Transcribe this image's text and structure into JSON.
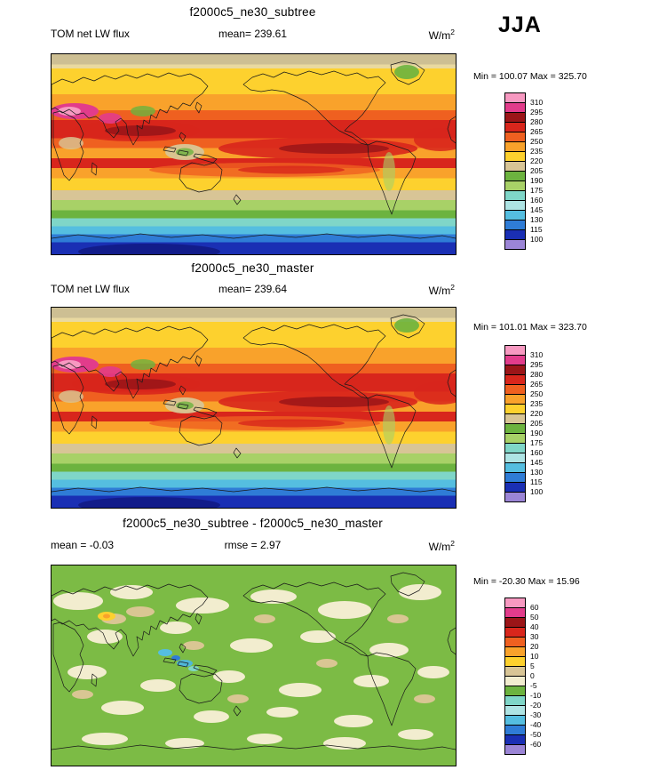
{
  "season_label": "JJA",
  "panels": [
    {
      "title": "f2000c5_ne30_subtree",
      "left_label": "TOM net LW flux",
      "center_label": "mean= 239.61",
      "units_base": "W/m",
      "units_exp": "2",
      "minmax": "Min = 100.07 Max = 325.70",
      "colorbar": {
        "labels": [
          "310",
          "295",
          "280",
          "265",
          "250",
          "235",
          "220",
          "205",
          "190",
          "175",
          "160",
          "145",
          "130",
          "115",
          "100"
        ],
        "colors": [
          "#F799C1",
          "#E23C8B",
          "#9B1518",
          "#D8261C",
          "#EF6020",
          "#F9A22B",
          "#FDD12E",
          "#D8C596",
          "#6CB33F",
          "#A8D167",
          "#7FD6C8",
          "#AEE4E4",
          "#55BEE0",
          "#2F7CD6",
          "#1A2FB4",
          "#9B85D6"
        ]
      }
    },
    {
      "title": "f2000c5_ne30_master",
      "left_label": "TOM net LW flux",
      "center_label": "mean= 239.64",
      "units_base": "W/m",
      "units_exp": "2",
      "minmax": "Min = 101.01 Max = 323.70",
      "colorbar": {
        "labels": [
          "310",
          "295",
          "280",
          "265",
          "250",
          "235",
          "220",
          "205",
          "190",
          "175",
          "160",
          "145",
          "130",
          "115",
          "100"
        ],
        "colors": [
          "#F799C1",
          "#E23C8B",
          "#9B1518",
          "#D8261C",
          "#EF6020",
          "#F9A22B",
          "#FDD12E",
          "#D8C596",
          "#6CB33F",
          "#A8D167",
          "#7FD6C8",
          "#AEE4E4",
          "#55BEE0",
          "#2F7CD6",
          "#1A2FB4",
          "#9B85D6"
        ]
      }
    },
    {
      "title": "f2000c5_ne30_subtree - f2000c5_ne30_master",
      "left_label": "mean = -0.03",
      "center_label": "rmse =  2.97",
      "units_base": "W/m",
      "units_exp": "2",
      "minmax": "Min = -20.30 Max =  15.96",
      "colorbar": {
        "labels": [
          "60",
          "50",
          "40",
          "30",
          "20",
          "10",
          "5",
          "0",
          "-5",
          "-10",
          "-20",
          "-30",
          "-40",
          "-50",
          "-60"
        ],
        "colors": [
          "#F799C1",
          "#E23C8B",
          "#9B1518",
          "#D8261C",
          "#EF6020",
          "#F9A22B",
          "#FDD12E",
          "#D8C596",
          "#F2EDCF",
          "#6CB33F",
          "#7FD6C8",
          "#AEE4E4",
          "#55BEE0",
          "#2F7CD6",
          "#1A2FB4",
          "#9B85D6"
        ]
      }
    }
  ],
  "chart_data": [
    {
      "type": "heatmap",
      "subtype": "global_contour_map",
      "projection": "equirectangular",
      "title": "f2000c5_ne30_subtree",
      "variable": "TOM net LW flux",
      "season": "JJA",
      "units": "W/m^2",
      "mean": 239.61,
      "min": 100.07,
      "max": 325.7,
      "contour_levels": [
        100,
        115,
        130,
        145,
        160,
        175,
        190,
        205,
        220,
        235,
        250,
        265,
        280,
        295,
        310
      ],
      "palette_low_to_high": [
        "#9B85D6",
        "#1A2FB4",
        "#2F7CD6",
        "#55BEE0",
        "#AEE4E4",
        "#7FD6C8",
        "#A8D167",
        "#6CB33F",
        "#D8C596",
        "#FDD12E",
        "#F9A22B",
        "#EF6020",
        "#D8261C",
        "#9B1518",
        "#E23C8B",
        "#F799C1"
      ]
    },
    {
      "type": "heatmap",
      "subtype": "global_contour_map",
      "projection": "equirectangular",
      "title": "f2000c5_ne30_master",
      "variable": "TOM net LW flux",
      "season": "JJA",
      "units": "W/m^2",
      "mean": 239.64,
      "min": 101.01,
      "max": 323.7,
      "contour_levels": [
        100,
        115,
        130,
        145,
        160,
        175,
        190,
        205,
        220,
        235,
        250,
        265,
        280,
        295,
        310
      ],
      "palette_low_to_high": [
        "#9B85D6",
        "#1A2FB4",
        "#2F7CD6",
        "#55BEE0",
        "#AEE4E4",
        "#7FD6C8",
        "#A8D167",
        "#6CB33F",
        "#D8C596",
        "#FDD12E",
        "#F9A22B",
        "#EF6020",
        "#D8261C",
        "#9B1518",
        "#E23C8B",
        "#F799C1"
      ]
    },
    {
      "type": "heatmap",
      "subtype": "global_contour_map_difference",
      "projection": "equirectangular",
      "title": "f2000c5_ne30_subtree - f2000c5_ne30_master",
      "variable": "TOM net LW flux difference",
      "season": "JJA",
      "units": "W/m^2",
      "mean": -0.03,
      "rmse": 2.97,
      "min": -20.3,
      "max": 15.96,
      "contour_levels": [
        -60,
        -50,
        -40,
        -30,
        -20,
        -10,
        -5,
        0,
        5,
        10,
        20,
        30,
        40,
        50,
        60
      ],
      "palette_low_to_high": [
        "#9B85D6",
        "#1A2FB4",
        "#2F7CD6",
        "#55BEE0",
        "#AEE4E4",
        "#7FD6C8",
        "#6CB33F",
        "#F2EDCF",
        "#D8C596",
        "#FDD12E",
        "#F9A22B",
        "#EF6020",
        "#D8261C",
        "#9B1518",
        "#E23C8B",
        "#F799C1"
      ]
    }
  ]
}
